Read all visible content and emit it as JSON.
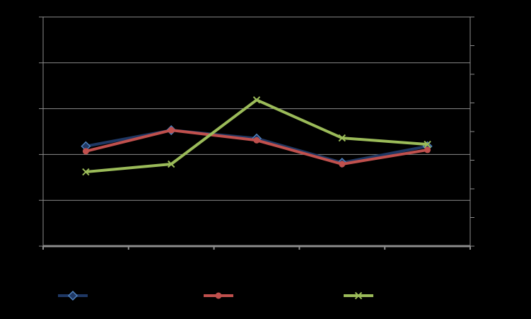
{
  "chart_data": {
    "type": "line",
    "categories": [
      null,
      null,
      null,
      null,
      null
    ],
    "series": [
      {
        "color": "#1f3864",
        "marker": "diamond",
        "values": [
          2.18,
          2.53,
          2.35,
          1.82,
          2.18
        ]
      },
      {
        "color": "#c0504d",
        "marker": "circle",
        "values": [
          2.07,
          2.53,
          2.31,
          1.79,
          2.1
        ]
      },
      {
        "color": "#9bbb59",
        "marker": "x",
        "values": [
          1.62,
          1.79,
          3.19,
          2.36,
          2.22
        ]
      }
    ],
    "ylim": [
      0,
      5
    ],
    "yticks": [
      0,
      1,
      2,
      3,
      4,
      5
    ],
    "y2lim": [
      0,
      8
    ],
    "y2ticks": [
      0,
      1,
      2,
      3,
      4,
      5,
      6,
      7,
      8
    ],
    "grid": true
  }
}
